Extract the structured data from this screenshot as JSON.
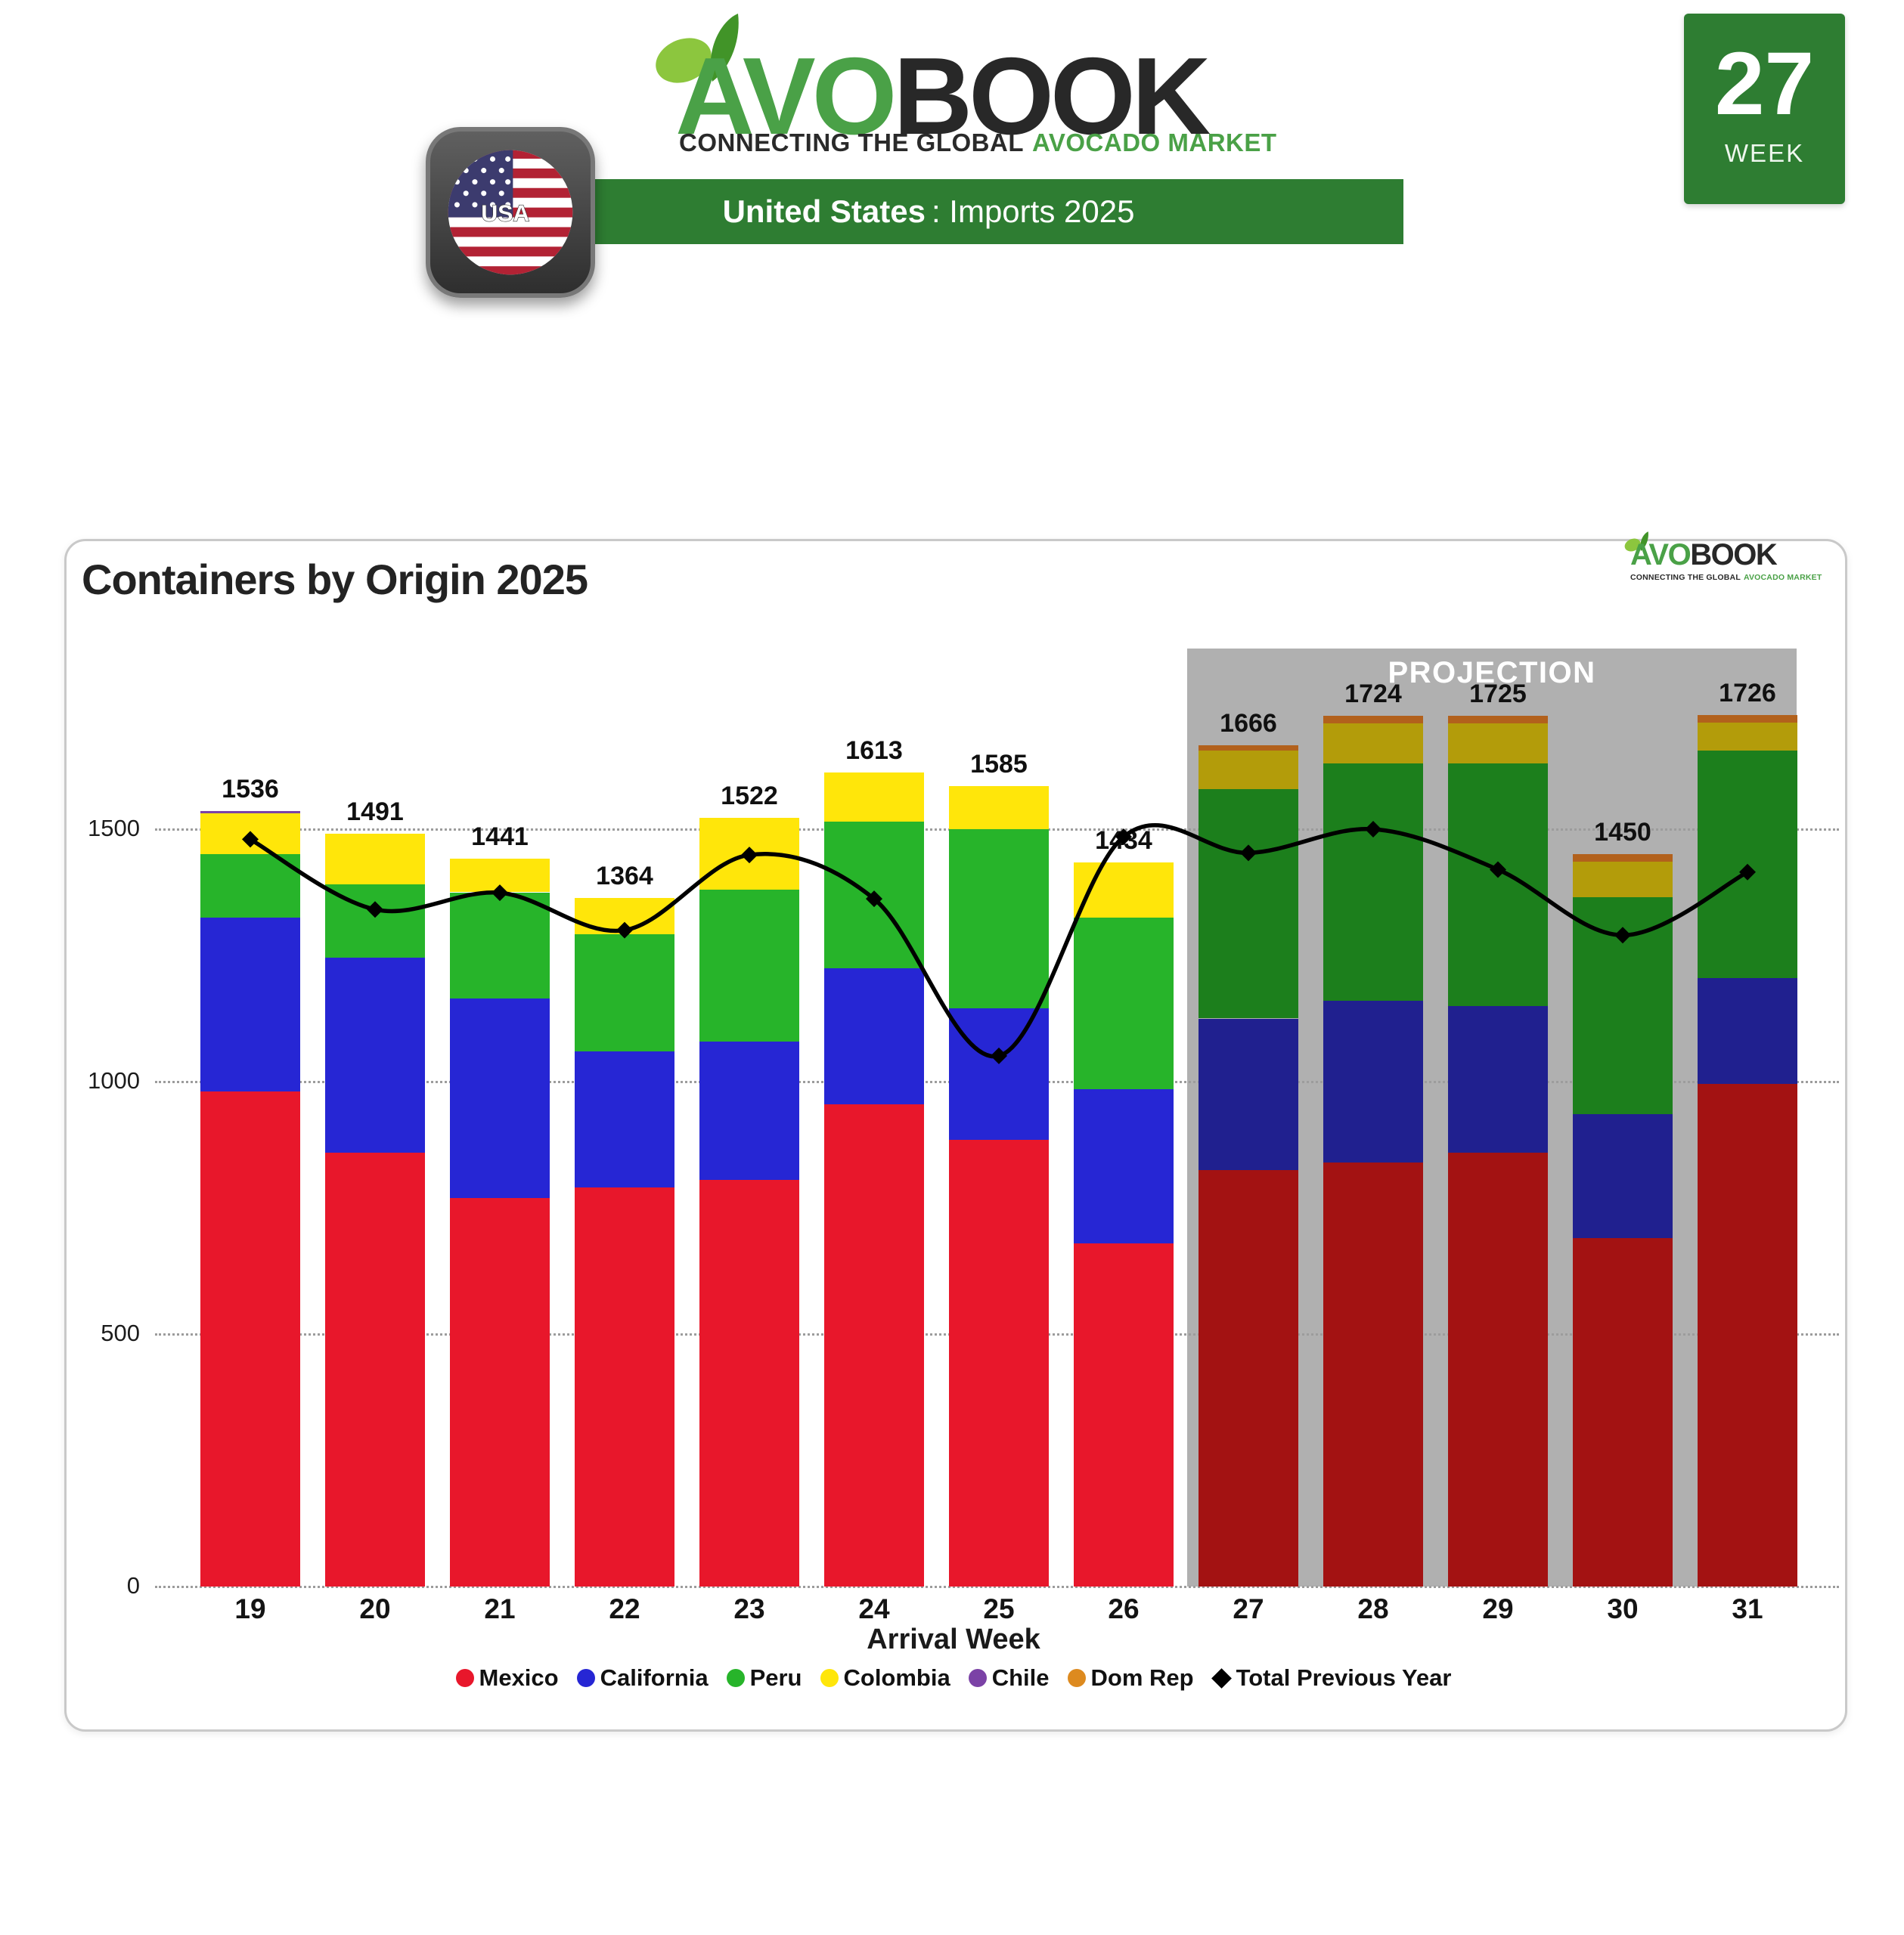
{
  "header": {
    "logo": {
      "avo": "AVO",
      "book": "BOOK",
      "tagline_dark": "CONNECTING THE GLOBAL",
      "tagline_green": "AVOCADO MARKET"
    },
    "banner": {
      "country": "United States",
      "rest": ": Imports 2025"
    },
    "flag_label": "USA",
    "week_badge": {
      "number": "27",
      "label": "WEEK"
    }
  },
  "card": {
    "title": "Containers by Origin 2025"
  },
  "chart_data": {
    "type": "bar",
    "stacked": true,
    "title": "Containers by Origin 2025",
    "xlabel": "Arrival Week",
    "ylabel": "",
    "ylim": [
      0,
      1800
    ],
    "yticks": [
      0,
      500,
      1000,
      1500
    ],
    "grid": "dotted-horizontal",
    "legend_position": "bottom",
    "categories": [
      19,
      20,
      21,
      22,
      23,
      24,
      25,
      26,
      27,
      28,
      29,
      30,
      31
    ],
    "projection": {
      "label": "PROJECTION",
      "weeks": [
        27,
        28,
        29,
        30,
        31
      ]
    },
    "series": [
      {
        "name": "Mexico",
        "color": "#e8172b",
        "projection_color": "#a31212",
        "values": [
          980,
          860,
          770,
          790,
          805,
          955,
          885,
          680,
          825,
          840,
          860,
          690,
          995
        ]
      },
      {
        "name": "California",
        "color": "#2626d4",
        "projection_color": "#20208f",
        "values": [
          345,
          385,
          395,
          270,
          275,
          270,
          260,
          305,
          300,
          320,
          290,
          245,
          210
        ]
      },
      {
        "name": "Peru",
        "color": "#27b42a",
        "projection_color": "#1c7f1c",
        "values": [
          125,
          145,
          210,
          232,
          300,
          290,
          355,
          340,
          455,
          470,
          480,
          430,
          450
        ]
      },
      {
        "name": "Colombia",
        "color": "#ffe60a",
        "projection_color": "#b39c0a",
        "values": [
          81,
          101,
          66,
          72,
          142,
          98,
          85,
          109,
          75,
          80,
          80,
          70,
          56
        ]
      },
      {
        "name": "Chile",
        "color": "#7b42a6",
        "projection_color": "#5e3380",
        "values": [
          5,
          0,
          0,
          0,
          0,
          0,
          0,
          0,
          0,
          0,
          0,
          0,
          0
        ]
      },
      {
        "name": "Dom Rep",
        "color": "#dd8a1f",
        "projection_color": "#b2611c",
        "values": [
          0,
          0,
          0,
          0,
          0,
          0,
          0,
          0,
          11,
          14,
          15,
          15,
          15
        ]
      }
    ],
    "totals": [
      1536,
      1491,
      1441,
      1364,
      1522,
      1613,
      1585,
      1434,
      1666,
      1724,
      1725,
      1450,
      1726
    ],
    "line_series": {
      "name": "Total Previous Year",
      "color": "#000000",
      "marker": "diamond",
      "values": [
        1480,
        1341,
        1374,
        1300,
        1449,
        1362,
        1051,
        1485,
        1453,
        1500,
        1420,
        1290,
        1415
      ]
    }
  },
  "colors": {
    "brand_green": "#2e7d32",
    "logo_green": "#4aa147",
    "projection_bg": "#b0b0b0",
    "card_border": "#c9c9c9"
  }
}
